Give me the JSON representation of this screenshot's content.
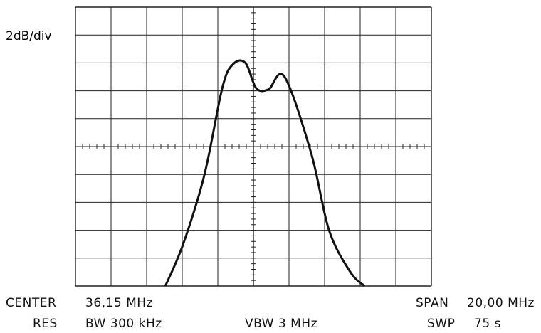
{
  "chart_data": {
    "type": "line",
    "title": "",
    "xlabel": "",
    "ylabel": "",
    "scale_label": "2dB/div",
    "xlim": [
      26.15,
      46.15
    ],
    "ylim": [
      -18,
      2
    ],
    "grid": true,
    "x_divisions": 10,
    "y_divisions": 10,
    "x_unit": "MHz",
    "y_unit": "dB",
    "series": [
      {
        "x": [
          31.2,
          32.2,
          33.4,
          34.4,
          35.0,
          35.7,
          36.3,
          37.0,
          37.9,
          39.4,
          40.4,
          41.6,
          42.4
        ],
        "y": [
          -18.0,
          -15.0,
          -10.0,
          -3.8,
          -2.1,
          -2.0,
          -3.8,
          -3.9,
          -3.0,
          -8.5,
          -14.0,
          -17.0,
          -18.0
        ]
      }
    ]
  },
  "footer": {
    "center_label": "CENTER",
    "center_value": "36,15 MHz",
    "span_label": "SPAN",
    "span_value": "20,00 MHz",
    "res_label": "RES",
    "res_value": "BW 300 kHz",
    "vbw_value": "VBW 3 MHz",
    "swp_label": "SWP",
    "swp_value": "75 s"
  },
  "colors": {
    "trace": "#111111",
    "grid": "#222222"
  }
}
